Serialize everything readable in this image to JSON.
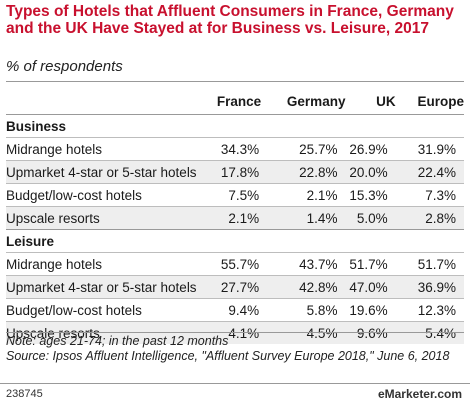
{
  "title": "Types of Hotels that Affluent Consumers in France, Germany and the UK Have Stayed at for Business vs. Leisure, 2017",
  "subtitle": "% of respondents",
  "note": "Note: ages 21-74; in the past 12 months",
  "source": "Source: Ipsos Affluent Intelligence, \"Affluent Survey Europe 2018,\" June 6, 2018",
  "chart_id": "238745",
  "logo": "eMarketer.com",
  "chart_data": {
    "type": "table",
    "columns": [
      "France",
      "Germany",
      "UK",
      "Europe"
    ],
    "sections": [
      {
        "name": "Business",
        "rows": [
          {
            "label": "Midrange hotels",
            "values": [
              "34.3%",
              "25.7%",
              "26.9%",
              "31.9%"
            ]
          },
          {
            "label": "Upmarket 4-star or 5-star hotels",
            "values": [
              "17.8%",
              "22.8%",
              "20.0%",
              "22.4%"
            ]
          },
          {
            "label": "Budget/low-cost hotels",
            "values": [
              "7.5%",
              "2.1%",
              "15.3%",
              "7.3%"
            ]
          },
          {
            "label": "Upscale resorts",
            "values": [
              "2.1%",
              "1.4%",
              "5.0%",
              "2.8%"
            ]
          }
        ]
      },
      {
        "name": "Leisure",
        "rows": [
          {
            "label": "Midrange hotels",
            "values": [
              "55.7%",
              "43.7%",
              "51.7%",
              "51.7%"
            ]
          },
          {
            "label": "Upmarket 4-star or 5-star hotels",
            "values": [
              "27.7%",
              "42.8%",
              "47.0%",
              "36.9%"
            ]
          },
          {
            "label": "Budget/low-cost hotels",
            "values": [
              "9.4%",
              "5.8%",
              "19.6%",
              "12.3%"
            ]
          },
          {
            "label": "Upscale resorts",
            "values": [
              "4.1%",
              "4.5%",
              "9.6%",
              "5.4%"
            ]
          }
        ]
      }
    ]
  }
}
